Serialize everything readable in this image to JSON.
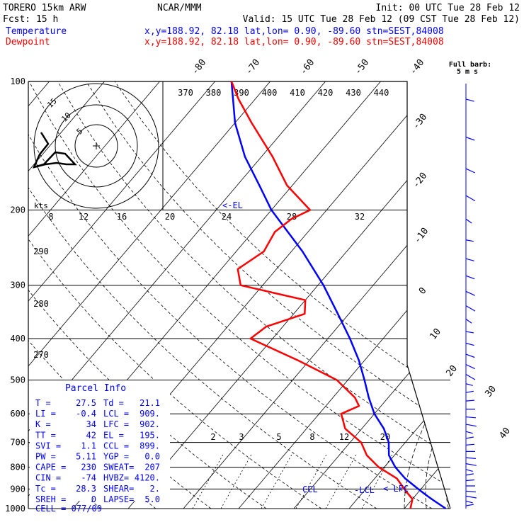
{
  "header": {
    "model": "TORERO  15km ARW",
    "center": "NCAR/MMM",
    "init": "Init: 00 UTC Tue 28 Feb 12",
    "fcst": "Fcst:   15 h",
    "valid": "Valid: 15 UTC Tue 28 Feb 12 (09 CST Tue 28 Feb 12)",
    "temp_label": "Temperature",
    "dew_label": "Dewpoint",
    "temp_loc": "x,y=188.92, 82.18   lat,lon=  0.90, -89.60  stn=SEST,84008",
    "dew_loc": "x,y=188.92, 82.18   lat,lon=  0.90, -89.60  stn=SEST,84008",
    "full_barb_1": "Full barb:",
    "full_barb_2": "5 m s"
  },
  "colors": {
    "temperature": "#0000ff",
    "dewpoint": "#ff0000",
    "axes": "#000000",
    "guides": "#000000"
  },
  "chart_data": {
    "type": "line",
    "title": "",
    "xlabel": "",
    "ylabel": "",
    "y_scale": "log-pressure",
    "pressure_levels": [
      "100",
      "200",
      "300",
      "400",
      "500",
      "600",
      "700",
      "800",
      "900",
      "1000"
    ],
    "isotherm_labels": [
      "-80",
      "-70",
      "-60",
      "-50",
      "-40",
      "-30",
      "-20",
      "-10",
      "0",
      "10",
      "20",
      "30",
      "40"
    ],
    "theta_labels": [
      "370",
      "380",
      "390",
      "400",
      "410",
      "420",
      "430",
      "440"
    ],
    "theta_e_labels": [
      "8",
      "12",
      "16",
      "20",
      "24",
      "28",
      "32"
    ],
    "left_theta_labels": [
      "290",
      "280",
      "270"
    ],
    "mixing_ratio_labels": [
      "2",
      "3",
      "5",
      "8",
      "12",
      "20"
    ],
    "series": [
      {
        "name": "Temperature",
        "pressure": [
          1000,
          950,
          925,
          900,
          850,
          800,
          750,
          700,
          650,
          600,
          550,
          500,
          450,
          400,
          350,
          300,
          250,
          200,
          175,
          150,
          125,
          110,
          100
        ],
        "values": [
          27.5,
          23.5,
          21.5,
          19.5,
          15.5,
          12,
          9,
          7,
          4,
          0,
          -3.5,
          -7,
          -11,
          -16,
          -22,
          -29,
          -38,
          -50,
          -56,
          -63,
          -70,
          -74,
          -77
        ]
      },
      {
        "name": "Dewpoint",
        "pressure": [
          1000,
          950,
          925,
          900,
          850,
          800,
          750,
          700,
          650,
          600,
          575,
          550,
          500,
          450,
          400,
          375,
          350,
          325,
          300,
          275,
          250,
          225,
          210,
          200,
          175,
          150,
          125,
          110,
          100
        ],
        "values": [
          21.1,
          20,
          18.5,
          17,
          14,
          9,
          5,
          2,
          -3,
          -6,
          -4,
          -6,
          -12,
          -22,
          -34,
          -33,
          -28,
          -30,
          -44,
          -47,
          -45,
          -46,
          -45,
          -43,
          -51,
          -58,
          -67,
          -73,
          -77
        ]
      }
    ],
    "markers": {
      "lcl": "-LCL",
      "lfc": "<-LFC",
      "ccl": "CCL",
      "el": "<-EL"
    },
    "hodograph": {
      "units": "kts",
      "ring_labels": [
        "5",
        "10",
        "15"
      ]
    },
    "wind_barbs_unit": "m/s"
  },
  "parcel_info": {
    "title": "Parcel Info",
    "rows": [
      [
        "T  =",
        "27.5",
        "Td =",
        "21.1"
      ],
      [
        "LI =",
        "-0.4",
        "LCL =",
        "909."
      ],
      [
        "K  =",
        "34",
        "LFC =",
        "902."
      ],
      [
        "TT =",
        "42",
        "EL  =",
        "195."
      ],
      [
        "SVI =",
        "1.1",
        "CCL =",
        "899."
      ],
      [
        "PW =",
        "5.11",
        "YGP =",
        "0.0"
      ],
      [
        "CAPE =",
        "230",
        "SWEAT=",
        "207"
      ],
      [
        "CIN =",
        "-74",
        "HVBZ=",
        "4120."
      ],
      [
        "Tc =",
        "28.3",
        "SHEAR=",
        "2."
      ],
      [
        "SREH =",
        "0",
        "LAPSE=",
        "5.0"
      ]
    ],
    "cell": "CELL = 077/09"
  }
}
